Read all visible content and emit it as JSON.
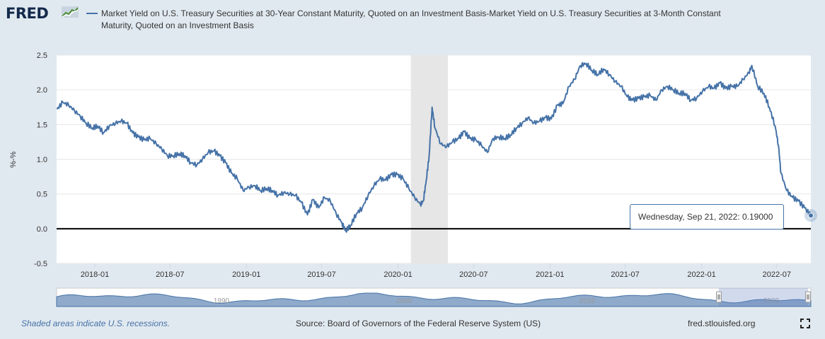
{
  "header": {
    "logo_text": "FRED",
    "legend_text": "Market Yield on U.S. Treasury Securities at 30-Year Constant Maturity, Quoted on an Investment Basis-Market Yield on U.S. Treasury Securities at 3-Month Constant Maturity, Quoted on an Investment Basis"
  },
  "tooltip": {
    "date": "Wednesday, Sep 21, 2022",
    "value": "0.19000"
  },
  "footer": {
    "recession_note": "Shaded areas indicate U.S. recessions.",
    "source": "Source: Board of Governors of the Federal Reserve System (US)",
    "url": "fred.stlouisfed.org"
  },
  "colors": {
    "series": "#4572a7",
    "recession": "#e6e6e6",
    "background": "#e1e9f0"
  },
  "icons": {
    "fullscreen": "fullscreen-icon",
    "logo": "fred-chart-icon"
  },
  "chart_data": {
    "type": "line",
    "ylabel": "%-%",
    "ylim": [
      -0.5,
      2.5
    ],
    "yticks": [
      -0.5,
      0.0,
      0.5,
      1.0,
      1.5,
      2.0,
      2.5
    ],
    "xlim": [
      "2017-10-01",
      "2022-09-21"
    ],
    "xticks": [
      "2018-01",
      "2018-07",
      "2019-01",
      "2019-07",
      "2020-01",
      "2020-07",
      "2021-01",
      "2021-07",
      "2022-01",
      "2022-07"
    ],
    "navigator_labels": [
      "1990",
      "2000",
      "2010",
      "2020"
    ],
    "recessions": [
      [
        "2020-02-01",
        "2020-04-30"
      ]
    ],
    "zero_line": true,
    "series": [
      {
        "points": [
          [
            "2017-10-02",
            1.72
          ],
          [
            "2017-10-16",
            1.82
          ],
          [
            "2017-10-30",
            1.78
          ],
          [
            "2017-11-13",
            1.7
          ],
          [
            "2017-11-27",
            1.62
          ],
          [
            "2017-12-11",
            1.52
          ],
          [
            "2017-12-26",
            1.45
          ],
          [
            "2018-01-08",
            1.48
          ],
          [
            "2018-01-22",
            1.38
          ],
          [
            "2018-02-05",
            1.48
          ],
          [
            "2018-02-20",
            1.52
          ],
          [
            "2018-03-05",
            1.55
          ],
          [
            "2018-03-19",
            1.52
          ],
          [
            "2018-04-02",
            1.38
          ],
          [
            "2018-04-16",
            1.32
          ],
          [
            "2018-04-30",
            1.28
          ],
          [
            "2018-05-14",
            1.3
          ],
          [
            "2018-05-29",
            1.22
          ],
          [
            "2018-06-11",
            1.15
          ],
          [
            "2018-06-25",
            1.05
          ],
          [
            "2018-07-09",
            1.05
          ],
          [
            "2018-07-23",
            1.08
          ],
          [
            "2018-08-06",
            1.05
          ],
          [
            "2018-08-20",
            0.95
          ],
          [
            "2018-09-04",
            0.92
          ],
          [
            "2018-09-17",
            1.0
          ],
          [
            "2018-10-01",
            1.1
          ],
          [
            "2018-10-15",
            1.12
          ],
          [
            "2018-10-29",
            1.05
          ],
          [
            "2018-11-12",
            0.95
          ],
          [
            "2018-11-26",
            0.8
          ],
          [
            "2018-12-10",
            0.72
          ],
          [
            "2018-12-24",
            0.55
          ],
          [
            "2019-01-07",
            0.6
          ],
          [
            "2019-01-22",
            0.62
          ],
          [
            "2019-02-04",
            0.55
          ],
          [
            "2019-02-19",
            0.58
          ],
          [
            "2019-03-04",
            0.55
          ],
          [
            "2019-03-18",
            0.48
          ],
          [
            "2019-04-01",
            0.52
          ],
          [
            "2019-04-15",
            0.5
          ],
          [
            "2019-04-29",
            0.48
          ],
          [
            "2019-05-13",
            0.38
          ],
          [
            "2019-05-28",
            0.2
          ],
          [
            "2019-06-10",
            0.42
          ],
          [
            "2019-06-24",
            0.3
          ],
          [
            "2019-07-08",
            0.45
          ],
          [
            "2019-07-22",
            0.4
          ],
          [
            "2019-08-05",
            0.22
          ],
          [
            "2019-08-19",
            0.08
          ],
          [
            "2019-08-28",
            -0.03
          ],
          [
            "2019-09-09",
            0.05
          ],
          [
            "2019-09-23",
            0.22
          ],
          [
            "2019-10-07",
            0.3
          ],
          [
            "2019-10-21",
            0.48
          ],
          [
            "2019-11-04",
            0.62
          ],
          [
            "2019-11-18",
            0.72
          ],
          [
            "2019-12-02",
            0.7
          ],
          [
            "2019-12-16",
            0.78
          ],
          [
            "2019-12-30",
            0.78
          ],
          [
            "2020-01-13",
            0.72
          ],
          [
            "2020-01-27",
            0.58
          ],
          [
            "2020-02-10",
            0.45
          ],
          [
            "2020-02-24",
            0.35
          ],
          [
            "2020-03-02",
            0.4
          ],
          [
            "2020-03-09",
            0.7
          ],
          [
            "2020-03-16",
            1.05
          ],
          [
            "2020-03-23",
            1.75
          ],
          [
            "2020-03-30",
            1.45
          ],
          [
            "2020-04-13",
            1.22
          ],
          [
            "2020-04-27",
            1.18
          ],
          [
            "2020-05-11",
            1.25
          ],
          [
            "2020-05-26",
            1.3
          ],
          [
            "2020-06-08",
            1.4
          ],
          [
            "2020-06-22",
            1.3
          ],
          [
            "2020-07-06",
            1.28
          ],
          [
            "2020-07-20",
            1.2
          ],
          [
            "2020-08-03",
            1.1
          ],
          [
            "2020-08-17",
            1.3
          ],
          [
            "2020-08-31",
            1.32
          ],
          [
            "2020-09-14",
            1.3
          ],
          [
            "2020-09-28",
            1.35
          ],
          [
            "2020-10-12",
            1.45
          ],
          [
            "2020-10-26",
            1.52
          ],
          [
            "2020-11-09",
            1.6
          ],
          [
            "2020-11-23",
            1.52
          ],
          [
            "2020-12-07",
            1.55
          ],
          [
            "2020-12-21",
            1.6
          ],
          [
            "2021-01-04",
            1.58
          ],
          [
            "2021-01-19",
            1.78
          ],
          [
            "2021-02-01",
            1.8
          ],
          [
            "2021-02-16",
            2.05
          ],
          [
            "2021-03-01",
            2.15
          ],
          [
            "2021-03-15",
            2.35
          ],
          [
            "2021-03-29",
            2.38
          ],
          [
            "2021-04-12",
            2.28
          ],
          [
            "2021-04-26",
            2.22
          ],
          [
            "2021-05-10",
            2.3
          ],
          [
            "2021-05-24",
            2.22
          ],
          [
            "2021-06-07",
            2.12
          ],
          [
            "2021-06-21",
            2.05
          ],
          [
            "2021-07-06",
            1.9
          ],
          [
            "2021-07-19",
            1.85
          ],
          [
            "2021-08-02",
            1.88
          ],
          [
            "2021-08-16",
            1.9
          ],
          [
            "2021-08-30",
            1.92
          ],
          [
            "2021-09-13",
            1.85
          ],
          [
            "2021-09-27",
            2.0
          ],
          [
            "2021-10-11",
            2.05
          ],
          [
            "2021-10-25",
            2.0
          ],
          [
            "2021-11-08",
            1.95
          ],
          [
            "2021-11-22",
            1.95
          ],
          [
            "2021-12-06",
            1.85
          ],
          [
            "2021-12-20",
            1.88
          ],
          [
            "2022-01-03",
            1.98
          ],
          [
            "2022-01-18",
            2.05
          ],
          [
            "2022-01-31",
            2.02
          ],
          [
            "2022-02-14",
            2.1
          ],
          [
            "2022-02-28",
            2.02
          ],
          [
            "2022-03-14",
            2.05
          ],
          [
            "2022-03-28",
            2.05
          ],
          [
            "2022-04-11",
            2.15
          ],
          [
            "2022-04-25",
            2.25
          ],
          [
            "2022-05-02",
            2.35
          ],
          [
            "2022-05-16",
            2.05
          ],
          [
            "2022-05-31",
            1.95
          ],
          [
            "2022-06-13",
            1.75
          ],
          [
            "2022-06-27",
            1.48
          ],
          [
            "2022-07-05",
            1.2
          ],
          [
            "2022-07-11",
            0.8
          ],
          [
            "2022-07-25",
            0.55
          ],
          [
            "2022-08-08",
            0.45
          ],
          [
            "2022-08-22",
            0.4
          ],
          [
            "2022-09-06",
            0.3
          ],
          [
            "2022-09-21",
            0.19
          ]
        ]
      }
    ]
  }
}
